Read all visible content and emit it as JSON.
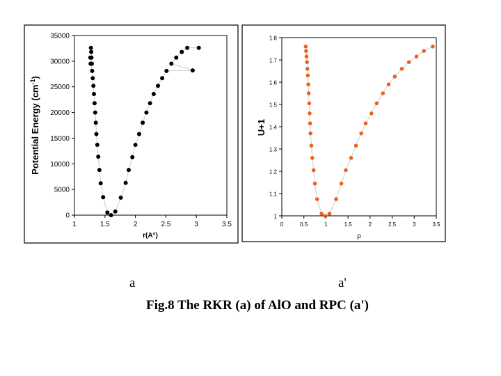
{
  "chart_data": [
    {
      "type": "scatter",
      "id": "a",
      "xlabel": "r(A°)",
      "ylabel": "Potential Energy (cm",
      "ylabel_sup": "-1",
      "ylabel_tail": ")",
      "xlim": [
        1,
        3.5
      ],
      "ylim": [
        0,
        35000
      ],
      "xticks": [
        "1",
        "1.5",
        "2",
        "2.5",
        "3",
        "3.5"
      ],
      "yticks": [
        "0",
        "5000",
        "10000",
        "15000",
        "20000",
        "25000",
        "30000",
        "35000"
      ],
      "marker_color": "#000000",
      "line_color": "#c0c0c0",
      "grid": false,
      "x": [
        1.6,
        1.54,
        1.67,
        1.47,
        1.76,
        1.43,
        1.84,
        1.41,
        1.89,
        1.39,
        1.95,
        1.375,
        2.0,
        1.36,
        2.06,
        1.35,
        2.12,
        1.34,
        2.18,
        1.33,
        2.24,
        1.32,
        2.3,
        1.31,
        2.37,
        1.3,
        2.44,
        1.29,
        2.51,
        1.285,
        2.59,
        1.28,
        2.67,
        1.275,
        2.76,
        1.27,
        2.85,
        1.265,
        2.94,
        1.26,
        3.04
      ],
      "y": [
        0,
        500,
        700,
        3500,
        3400,
        6200,
        6300,
        8800,
        8800,
        11400,
        11300,
        13700,
        13700,
        15800,
        15800,
        18000,
        18000,
        20000,
        20000,
        21800,
        21800,
        23600,
        23600,
        25200,
        25200,
        26700,
        26700,
        28100,
        28100,
        29500,
        29500,
        30700,
        30700,
        31800,
        31800,
        32600,
        32600,
        29500,
        28200,
        30700,
        32600
      ]
    },
    {
      "type": "scatter",
      "id": "a'",
      "xlabel": "ρ",
      "ylabel": "U+1",
      "xlim": [
        0,
        3.5
      ],
      "ylim": [
        1,
        1.8
      ],
      "xticks": [
        "0",
        "0.5",
        "1",
        "1.5",
        "2",
        "2.5",
        "3",
        "3.5"
      ],
      "yticks": [
        "1",
        "1.1",
        "1.2",
        "1.3",
        "1.4",
        "1.5",
        "1.6",
        "1.7",
        "1.8"
      ],
      "marker_color": "#e8641c",
      "line_color": "#c0c0c0",
      "grid": false,
      "x": [
        0.54,
        0.55,
        0.56,
        0.57,
        0.58,
        0.59,
        0.6,
        0.61,
        0.62,
        0.63,
        0.64,
        0.65,
        0.67,
        0.69,
        0.72,
        0.75,
        0.8,
        0.9,
        0.98,
        1.08,
        1.23,
        1.35,
        1.45,
        1.57,
        1.68,
        1.8,
        1.9,
        2.03,
        2.15,
        2.29,
        2.42,
        2.56,
        2.72,
        2.88,
        3.05,
        3.22,
        3.42
      ],
      "y": [
        1.76,
        1.74,
        1.715,
        1.69,
        1.66,
        1.63,
        1.59,
        1.55,
        1.505,
        1.46,
        1.415,
        1.37,
        1.315,
        1.26,
        1.205,
        1.145,
        1.075,
        1.01,
        1.0,
        1.01,
        1.075,
        1.145,
        1.205,
        1.26,
        1.315,
        1.37,
        1.415,
        1.46,
        1.505,
        1.55,
        1.59,
        1.625,
        1.66,
        1.69,
        1.715,
        1.74,
        1.76
      ]
    }
  ],
  "labels": {
    "left": "a",
    "right": "a'"
  },
  "caption": "Fig.8  The RKR (a) of AlO and RPC (a')"
}
